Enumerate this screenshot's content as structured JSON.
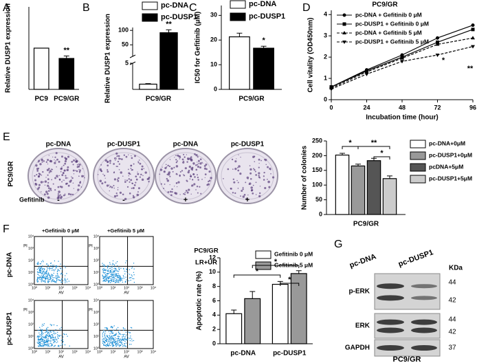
{
  "chart_data": [
    {
      "type": "bar",
      "ylabel": "Relative DUSP1 expression",
      "categories": [
        "PC9",
        "PC9/GR"
      ],
      "values": [
        1.0,
        0.75
      ],
      "errors": [
        0.0,
        0.06
      ],
      "colors": [
        "#ffffff",
        "#000000"
      ],
      "ylim": [
        0,
        2
      ],
      "annotations": [
        "**"
      ]
    },
    {
      "type": "bar",
      "ylabel": "Relative DUSP1 expression",
      "categories": [
        "PC9/GR"
      ],
      "series": [
        {
          "name": "pc-DNA",
          "color": "#ffffff",
          "values": [
            1
          ],
          "errors": [
            0.1
          ]
        },
        {
          "name": "pc-DUSP1",
          "color": "#000000",
          "values": [
            92
          ],
          "errors": [
            10
          ]
        }
      ],
      "ylim": [
        0,
        110
      ],
      "axis_break": [
        5,
        10
      ],
      "yticks": [
        5,
        50,
        100
      ],
      "annotations": [
        "**"
      ]
    },
    {
      "type": "bar",
      "ylabel": "IC50 for Gefitinib (μM)",
      "categories": [
        "PC9/GR"
      ],
      "series": [
        {
          "name": "pc-DNA",
          "color": "#ffffff",
          "values": [
            21.3
          ],
          "errors": [
            1.5
          ]
        },
        {
          "name": "pc-DUSP1",
          "color": "#000000",
          "values": [
            16.7
          ],
          "errors": [
            0.8
          ]
        }
      ],
      "ylim": [
        0,
        34
      ],
      "yticks": [
        0,
        10,
        20,
        30
      ],
      "annotations": [
        "*"
      ]
    },
    {
      "type": "line",
      "title": "PC9/GR",
      "xlabel": "Incubation time (hour)",
      "ylabel": "Cell vitality (OD450nm)",
      "x": [
        0,
        24,
        48,
        72,
        96
      ],
      "xlim": [
        0,
        96
      ],
      "xticks": [
        0,
        24,
        48,
        72,
        96
      ],
      "ylim": [
        0,
        4.2
      ],
      "yticks": [
        0,
        1,
        2,
        3,
        4
      ],
      "series": [
        {
          "name": "pc-DNA + Gefitinib 0 μM",
          "color": "#000000",
          "marker": "circle",
          "dash": false,
          "values": [
            0.6,
            1.4,
            2.1,
            2.9,
            3.5
          ]
        },
        {
          "name": "pc-DUSP1 + Gefitinib 0 μM",
          "color": "#000000",
          "marker": "square",
          "dash": false,
          "values": [
            0.6,
            1.35,
            2.0,
            2.7,
            3.3
          ]
        },
        {
          "name": "pc-DNA + Gefitinib 5 μM",
          "color": "#000000",
          "marker": "triangle",
          "dash": true,
          "values": [
            0.55,
            1.3,
            1.95,
            2.6,
            2.9
          ]
        },
        {
          "name": "pc-DUSP1 + Gefitinib 5 μM",
          "color": "#000000",
          "marker": "triangle-down",
          "dash": true,
          "values": [
            0.5,
            1.2,
            1.8,
            2.1,
            2.5
          ]
        }
      ],
      "annotations": [
        "*",
        "**"
      ]
    },
    {
      "type": "bar",
      "ylabel": "Number of colonies",
      "categories": [
        "PC9/GR"
      ],
      "series": [
        {
          "name": "pc-DNA+0μM",
          "color": "#ffffff",
          "values": [
            202
          ],
          "errors": [
            6
          ]
        },
        {
          "name": "pc-DUSP1+0μM",
          "color": "#999999",
          "values": [
            165
          ],
          "errors": [
            6
          ]
        },
        {
          "name": "pcDNA+5μM",
          "color": "#555555",
          "values": [
            183
          ],
          "errors": [
            8
          ]
        },
        {
          "name": "pc-DUSP1+5μM",
          "color": "#cccccc",
          "values": [
            122
          ],
          "errors": [
            9
          ]
        }
      ],
      "ylim": [
        0,
        250
      ],
      "yticks": [
        0,
        50,
        100,
        150,
        200,
        250
      ],
      "annotations": [
        "*",
        "**",
        "*"
      ]
    },
    {
      "type": "bar",
      "ylabel": "Apoptotic rate (%)",
      "subtitle": "PC9/GR",
      "note": "LR+UR",
      "categories": [
        "pc-DNA",
        "pc-DUSP1"
      ],
      "series": [
        {
          "name": "Gefitinib 0 μM",
          "color": "#ffffff",
          "values": [
            4.2,
            8.3
          ],
          "errors": [
            0.5,
            0.4
          ]
        },
        {
          "name": "Gefitinib 5 μM",
          "color": "#999999",
          "values": [
            6.3,
            9.8
          ],
          "errors": [
            1.0,
            0.4
          ]
        }
      ],
      "ylim": [
        0,
        12
      ],
      "yticks": [
        0,
        2,
        4,
        6,
        8,
        10,
        12
      ],
      "annotations": [
        "*",
        "*",
        "*"
      ]
    }
  ],
  "panels": {
    "letters": [
      "A",
      "B",
      "C",
      "D",
      "E",
      "F",
      "G"
    ],
    "colony": {
      "columns": [
        "pc-DNA",
        "pc-DUSP1",
        "pc-DNA",
        "pc-DUSP1"
      ],
      "row": "PC9/GR",
      "treatment": "Gefitinib",
      "signs": [
        "-",
        "-",
        "+",
        "+"
      ]
    },
    "flow": {
      "columns": [
        "+Gefitinib 0 μM",
        "+Gefitinib 5 μM"
      ],
      "rows": [
        "pc-DNA",
        "pc-DUSP1"
      ],
      "x_axis": "AV",
      "y_axis": "PI",
      "ticks": [
        "10⁰",
        "10¹",
        "10²",
        "10³",
        "10⁴"
      ]
    },
    "blot": {
      "lanes": [
        "pc-DNA",
        "pc-DUSP1"
      ],
      "unit": "KDa",
      "rows": [
        {
          "label": "p-ERK",
          "sizes": [
            "44",
            "42"
          ]
        },
        {
          "label": "ERK",
          "sizes": [
            "44",
            "42"
          ]
        },
        {
          "label": "GAPDH",
          "sizes": [
            "37"
          ]
        }
      ],
      "caption": "PC9/GR"
    }
  }
}
